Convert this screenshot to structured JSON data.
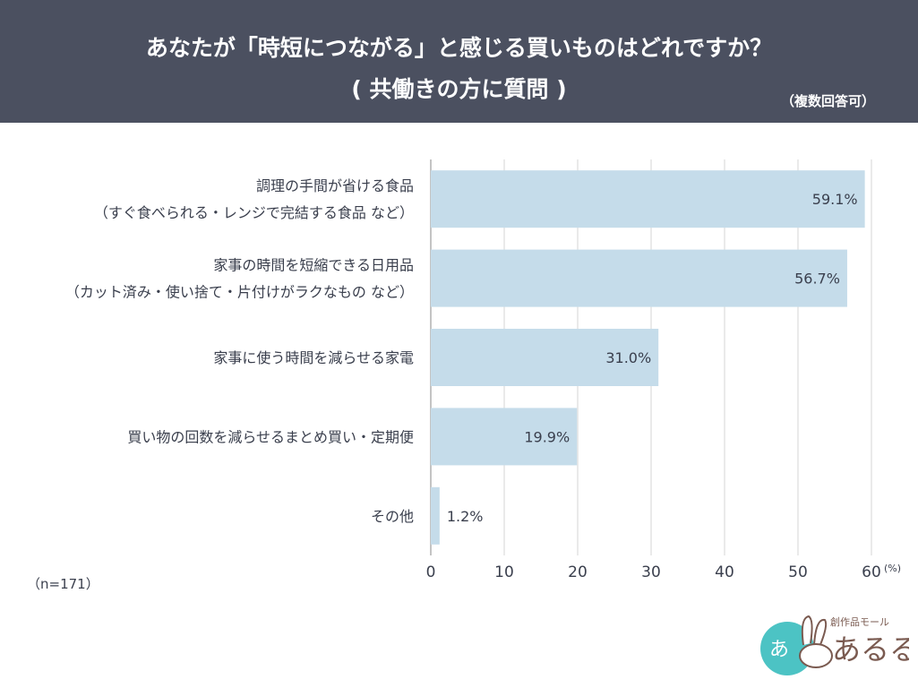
{
  "chart_data": {
    "type": "bar",
    "orientation": "horizontal",
    "title": "あなたが「時短につながる」と感じる買いものはどれですか？",
    "subtitle": "( 共働きの方に質問 )",
    "note": "（複数回答可）",
    "categories": [
      [
        "調理の手間が省ける食品",
        "（すぐ食べられる・レンジで完結する食品 など）"
      ],
      [
        "家事の時間を短縮できる日用品",
        "（カット済み・使い捨て・片付けがラクなもの など）"
      ],
      [
        "家事に使う時間を減らせる家電"
      ],
      [
        "買い物の回数を減らせるまとめ買い・定期便"
      ],
      [
        "その他"
      ]
    ],
    "values": [
      59.1,
      56.7,
      31.0,
      19.9,
      1.2
    ],
    "data_labels": [
      "59.1%",
      "56.7%",
      "31.0%",
      "19.9%",
      "1.2%"
    ],
    "xlim": [
      0,
      60
    ],
    "xticks": [
      "0",
      "10",
      "20",
      "30",
      "40",
      "50",
      "60"
    ],
    "xunit": "(%)",
    "grid": true,
    "bar_color": "#c5dcea",
    "sample_size": "（n=171）"
  },
  "logo": {
    "text": "創作品モール あるる",
    "accent": "#4cc3c4"
  }
}
